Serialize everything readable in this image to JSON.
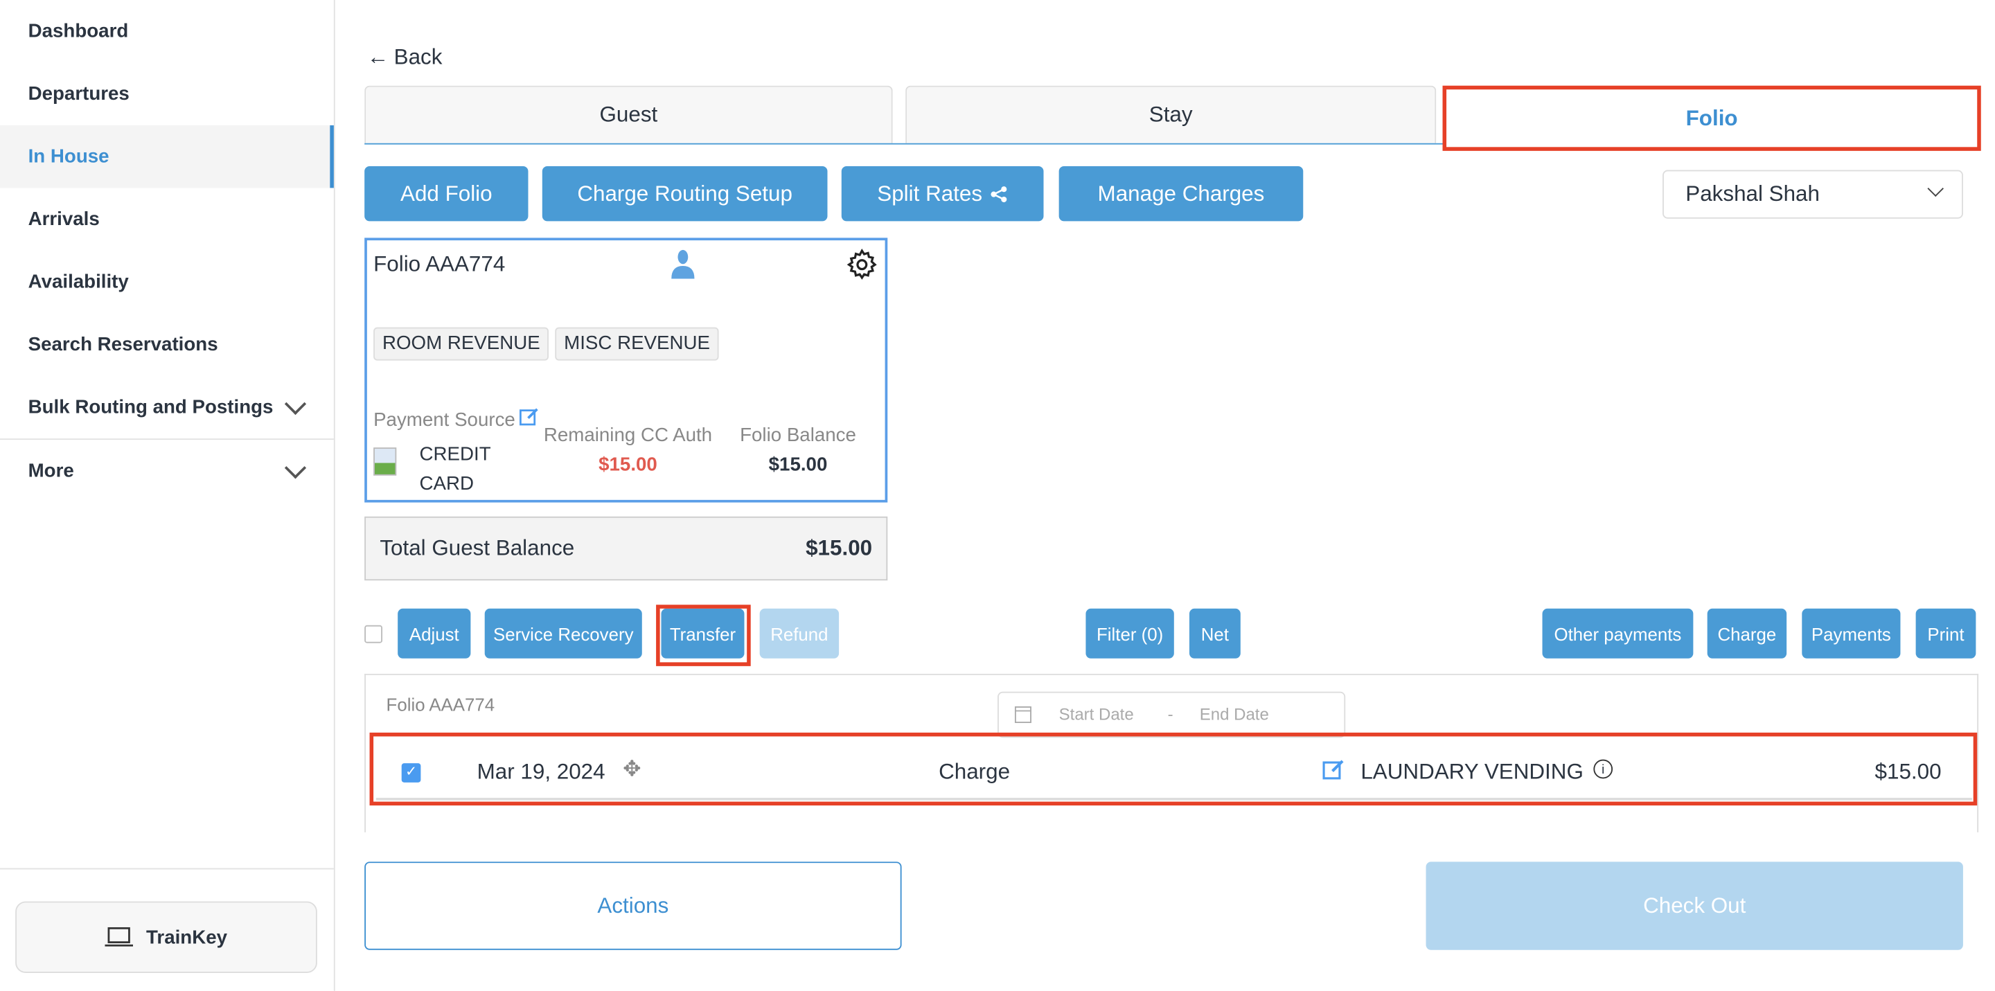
{
  "sidebar": {
    "items": [
      {
        "label": "Dashboard"
      },
      {
        "label": "Departures"
      },
      {
        "label": "In House",
        "active": true
      },
      {
        "label": "Arrivals"
      },
      {
        "label": "Availability"
      },
      {
        "label": "Search Reservations"
      },
      {
        "label": "Bulk Routing and Postings"
      },
      {
        "label": "More"
      }
    ],
    "trainkey": "TrainKey"
  },
  "back": "Back",
  "tabs": [
    "Guest",
    "Stay",
    "Folio"
  ],
  "toolbar": {
    "add_folio": "Add Folio",
    "charge_routing": "Charge Routing Setup",
    "split_rates": "Split Rates",
    "manage_charges": "Manage Charges",
    "guest_select": "Pakshal Shah"
  },
  "folio_card": {
    "title": "Folio AAA774",
    "tags": [
      "ROOM REVENUE",
      "MISC REVENUE"
    ],
    "payment_source_label": "Payment Source",
    "payment_source_line1": "CREDIT",
    "payment_source_line2": "CARD",
    "remaining_label": "Remaining CC Auth",
    "remaining_value": "$15.00",
    "balance_label": "Folio Balance",
    "balance_value": "$15.00"
  },
  "total": {
    "label": "Total Guest Balance",
    "value": "$15.00"
  },
  "actions": {
    "adjust": "Adjust",
    "service_recovery": "Service Recovery",
    "transfer": "Transfer",
    "refund": "Refund",
    "filter": "Filter (0)",
    "net": "Net",
    "other_payments": "Other payments",
    "charge": "Charge",
    "payments": "Payments",
    "print": "Print"
  },
  "table": {
    "folio_label": "Folio AAA774",
    "start_placeholder": "Start Date",
    "dash": "-",
    "end_placeholder": "End Date",
    "rows": [
      {
        "date": "Mar 19, 2024",
        "type": "Charge",
        "description": "LAUNDARY VENDING",
        "amount": "$15.00",
        "checked": true
      }
    ]
  },
  "footer": {
    "actions": "Actions",
    "checkout": "Check Out"
  },
  "colors": {
    "primary": "#4a9bd5",
    "highlight": "#e64027",
    "negative": "#e05a4f"
  }
}
